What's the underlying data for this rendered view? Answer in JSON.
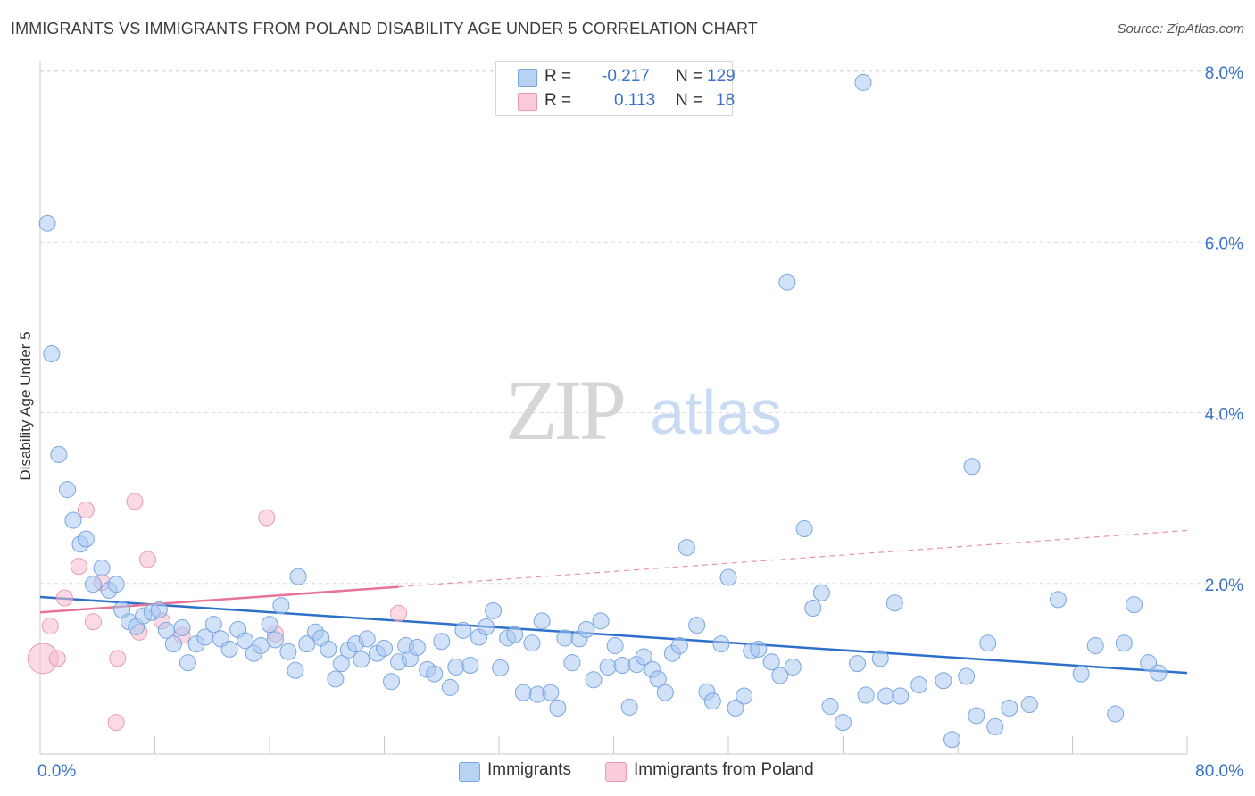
{
  "title": "IMMIGRANTS VS IMMIGRANTS FROM POLAND DISABILITY AGE UNDER 5 CORRELATION CHART",
  "source": "Source: ZipAtlas.com",
  "watermark": {
    "zip": "ZIP",
    "atlas": "atlas"
  },
  "legend_top": {
    "rows": [
      {
        "r_label": "R =",
        "r_value": "-0.217",
        "n_label": "N =",
        "n_value": "129"
      },
      {
        "r_label": "R =",
        "r_value": "0.113",
        "n_label": "N =",
        "n_value": "18"
      }
    ]
  },
  "legend_bottom": {
    "items": [
      "Immigrants",
      "Immigrants from Poland"
    ]
  },
  "colors": {
    "blue_fill": "#aac8f2",
    "blue_stroke": "#7aa6e0",
    "blue_line": "#2d6fc9",
    "pink_fill": "#f7bcd0",
    "pink_stroke": "#e99ab4",
    "pink_line": "#e8739a",
    "axis_text": "#3a72c9",
    "grid": "#dcdcdc"
  },
  "chart_data": {
    "type": "scatter",
    "title": "IMMIGRANTS VS IMMIGRANTS FROM POLAND DISABILITY AGE UNDER 5 CORRELATION CHART",
    "xlabel": "",
    "ylabel": "Disability Age Under 5",
    "xlim": [
      0,
      80
    ],
    "ylim": [
      0,
      8.0
    ],
    "x_tick_labels": [
      "0.0%",
      "80.0%"
    ],
    "y_tick_values": [
      2.0,
      4.0,
      6.0,
      8.0
    ],
    "y_tick_labels": [
      "2.0%",
      "4.0%",
      "6.0%",
      "8.0%"
    ],
    "grid": true,
    "legend_position": "top-center",
    "series": [
      {
        "name": "Immigrants",
        "r": -0.217,
        "n": 129,
        "trend": {
          "x": [
            0,
            80
          ],
          "y": [
            1.84,
            0.95
          ]
        },
        "points": [
          [
            0.5,
            6.22
          ],
          [
            0.8,
            4.69
          ],
          [
            1.3,
            3.51
          ],
          [
            1.9,
            3.1
          ],
          [
            2.3,
            2.74
          ],
          [
            2.8,
            2.46
          ],
          [
            3.2,
            2.52
          ],
          [
            4.3,
            2.18
          ],
          [
            3.7,
            1.99
          ],
          [
            4.8,
            1.92
          ],
          [
            5.3,
            1.99
          ],
          [
            5.7,
            1.69
          ],
          [
            6.2,
            1.55
          ],
          [
            6.7,
            1.49
          ],
          [
            7.2,
            1.62
          ],
          [
            7.8,
            1.66
          ],
          [
            8.3,
            1.69
          ],
          [
            8.8,
            1.45
          ],
          [
            9.3,
            1.29
          ],
          [
            9.9,
            1.48
          ],
          [
            10.3,
            1.07
          ],
          [
            10.9,
            1.29
          ],
          [
            11.5,
            1.37
          ],
          [
            12.1,
            1.52
          ],
          [
            12.6,
            1.35
          ],
          [
            13.2,
            1.23
          ],
          [
            13.8,
            1.46
          ],
          [
            14.3,
            1.33
          ],
          [
            14.9,
            1.18
          ],
          [
            15.4,
            1.27
          ],
          [
            16.0,
            1.52
          ],
          [
            16.4,
            1.34
          ],
          [
            16.8,
            1.74
          ],
          [
            17.3,
            1.2
          ],
          [
            17.8,
            0.98
          ],
          [
            18.0,
            2.08
          ],
          [
            18.6,
            1.29
          ],
          [
            19.2,
            1.43
          ],
          [
            19.6,
            1.36
          ],
          [
            20.1,
            1.23
          ],
          [
            20.6,
            0.88
          ],
          [
            21.0,
            1.06
          ],
          [
            21.5,
            1.22
          ],
          [
            22.0,
            1.29
          ],
          [
            22.4,
            1.11
          ],
          [
            22.8,
            1.35
          ],
          [
            23.5,
            1.18
          ],
          [
            24.0,
            1.24
          ],
          [
            24.5,
            0.85
          ],
          [
            25.0,
            1.08
          ],
          [
            25.5,
            1.27
          ],
          [
            25.8,
            1.12
          ],
          [
            26.3,
            1.25
          ],
          [
            27.0,
            0.99
          ],
          [
            27.5,
            0.94
          ],
          [
            28.0,
            1.32
          ],
          [
            28.6,
            0.78
          ],
          [
            29.0,
            1.02
          ],
          [
            29.5,
            1.45
          ],
          [
            30.0,
            1.04
          ],
          [
            30.6,
            1.37
          ],
          [
            31.1,
            1.49
          ],
          [
            31.6,
            1.68
          ],
          [
            32.1,
            1.01
          ],
          [
            32.6,
            1.36
          ],
          [
            33.1,
            1.4
          ],
          [
            33.7,
            0.72
          ],
          [
            34.3,
            1.3
          ],
          [
            34.7,
            0.7
          ],
          [
            35.0,
            1.56
          ],
          [
            35.6,
            0.72
          ],
          [
            36.1,
            0.54
          ],
          [
            36.6,
            1.36
          ],
          [
            37.1,
            1.07
          ],
          [
            37.6,
            1.35
          ],
          [
            38.1,
            1.46
          ],
          [
            38.6,
            0.87
          ],
          [
            39.1,
            1.56
          ],
          [
            39.6,
            1.02
          ],
          [
            40.1,
            1.27
          ],
          [
            40.6,
            1.04
          ],
          [
            41.1,
            0.55
          ],
          [
            41.6,
            1.05
          ],
          [
            42.1,
            1.14
          ],
          [
            42.7,
            0.99
          ],
          [
            43.1,
            0.88
          ],
          [
            43.6,
            0.72
          ],
          [
            44.1,
            1.18
          ],
          [
            44.6,
            1.27
          ],
          [
            45.1,
            2.42
          ],
          [
            45.8,
            1.51
          ],
          [
            46.5,
            0.73
          ],
          [
            46.9,
            0.62
          ],
          [
            48.0,
            2.07
          ],
          [
            48.5,
            0.54
          ],
          [
            49.1,
            0.68
          ],
          [
            49.6,
            1.21
          ],
          [
            50.1,
            1.23
          ],
          [
            51.0,
            1.08
          ],
          [
            51.6,
            0.92
          ],
          [
            52.5,
            1.02
          ],
          [
            53.3,
            2.64
          ],
          [
            53.9,
            1.71
          ],
          [
            54.5,
            1.89
          ],
          [
            55.1,
            0.56
          ],
          [
            56.0,
            0.37
          ],
          [
            57.0,
            1.06
          ],
          [
            57.4,
            7.87
          ],
          [
            57.6,
            0.69
          ],
          [
            58.6,
            1.12
          ],
          [
            59.0,
            0.68
          ],
          [
            59.6,
            1.77
          ],
          [
            60.0,
            0.68
          ],
          [
            61.3,
            0.81
          ],
          [
            63.0,
            0.86
          ],
          [
            63.6,
            0.17
          ],
          [
            64.6,
            0.91
          ],
          [
            65.0,
            3.37
          ],
          [
            65.3,
            0.45
          ],
          [
            66.1,
            1.3
          ],
          [
            66.6,
            0.32
          ],
          [
            67.6,
            0.54
          ],
          [
            69.0,
            0.58
          ],
          [
            71.0,
            1.81
          ],
          [
            72.6,
            0.94
          ],
          [
            73.6,
            1.27
          ],
          [
            75.0,
            0.47
          ],
          [
            75.6,
            1.3
          ],
          [
            76.3,
            1.75
          ],
          [
            77.3,
            1.07
          ],
          [
            78.0,
            0.95
          ],
          [
            52.1,
            5.53
          ],
          [
            47.5,
            1.29
          ]
        ]
      },
      {
        "name": "Immigrants from Poland",
        "r": 0.113,
        "n": 18,
        "trend": {
          "x": [
            0,
            25
          ],
          "y": [
            1.66,
            1.96
          ],
          "dashed_extension": {
            "x": [
              25,
              80
            ],
            "y": [
              1.96,
              2.62
            ]
          }
        },
        "points": [
          [
            0.2,
            1.12
          ],
          [
            0.7,
            1.5
          ],
          [
            1.2,
            1.12
          ],
          [
            1.7,
            1.83
          ],
          [
            2.7,
            2.2
          ],
          [
            3.2,
            2.86
          ],
          [
            3.7,
            1.55
          ],
          [
            4.3,
            2.01
          ],
          [
            5.4,
            1.12
          ],
          [
            6.6,
            2.96
          ],
          [
            6.9,
            1.43
          ],
          [
            7.5,
            2.28
          ],
          [
            8.5,
            1.56
          ],
          [
            9.9,
            1.39
          ],
          [
            15.8,
            2.77
          ],
          [
            16.4,
            1.41
          ],
          [
            25.0,
            1.65
          ],
          [
            5.3,
            0.37
          ]
        ]
      }
    ]
  }
}
